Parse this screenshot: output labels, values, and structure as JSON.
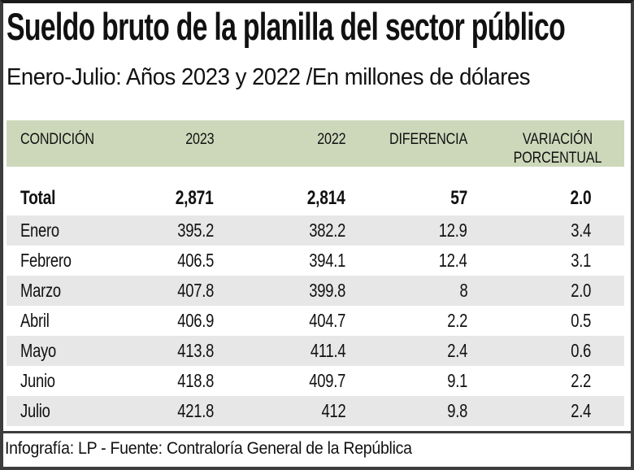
{
  "header": {
    "title": "Sueldo bruto de la planilla del sector público",
    "subtitle": "Enero-Julio: Años 2023 y 2022 /En millones de dólares"
  },
  "table": {
    "columns": [
      "CONDICIÓN",
      "2023",
      "2022",
      "DIFERENCIA",
      "VARIACIÓN\nPORCENTUAL"
    ],
    "rows": [
      {
        "label": "Total",
        "y2023": "2,871",
        "y2022": "2,814",
        "diff": "57",
        "pct": "2.0"
      },
      {
        "label": "Enero",
        "y2023": "395.2",
        "y2022": "382.2",
        "diff": "12.9",
        "pct": "3.4"
      },
      {
        "label": "Febrero",
        "y2023": "406.5",
        "y2022": "394.1",
        "diff": "12.4",
        "pct": "3.1"
      },
      {
        "label": "Marzo",
        "y2023": "407.8",
        "y2022": "399.8",
        "diff": "8",
        "pct": "2.0"
      },
      {
        "label": "Abril",
        "y2023": "406.9",
        "y2022": "404.7",
        "diff": "2.2",
        "pct": "0.5"
      },
      {
        "label": "Mayo",
        "y2023": "413.8",
        "y2022": "411.4",
        "diff": "2.4",
        "pct": "0.6"
      },
      {
        "label": "Junio",
        "y2023": "418.8",
        "y2022": "409.7",
        "diff": "9.1",
        "pct": "2.2"
      },
      {
        "label": "Julio",
        "y2023": "421.8",
        "y2022": "412",
        "diff": "9.8",
        "pct": "2.4"
      }
    ]
  },
  "footer": {
    "credit": "Infografía: LP - Fuente: Contraloría General de la República"
  },
  "colors": {
    "header_bg": "#cdd8ba",
    "row_alt_bg": "#e7e7e7",
    "frame_border": "#3d3d3d",
    "text": "#111111",
    "background": "#ffffff"
  },
  "chart_data": {
    "type": "table",
    "title": "Sueldo bruto de la planilla del sector público",
    "subtitle": "Enero-Julio: Años 2023 y 2022 /En millones de dólares",
    "units": "millones de dólares",
    "columns": [
      "CONDICIÓN",
      "2023",
      "2022",
      "DIFERENCIA",
      "VARIACIÓN PORCENTUAL"
    ],
    "categories": [
      "Total",
      "Enero",
      "Febrero",
      "Marzo",
      "Abril",
      "Mayo",
      "Junio",
      "Julio"
    ],
    "series": [
      {
        "name": "2023",
        "values": [
          2871,
          395.2,
          406.5,
          407.8,
          406.9,
          413.8,
          418.8,
          421.8
        ]
      },
      {
        "name": "2022",
        "values": [
          2814,
          382.2,
          394.1,
          399.8,
          404.7,
          411.4,
          409.7,
          412
        ]
      },
      {
        "name": "DIFERENCIA",
        "values": [
          57,
          12.9,
          12.4,
          8,
          2.2,
          2.4,
          9.1,
          9.8
        ]
      },
      {
        "name": "VARIACIÓN PORCENTUAL",
        "values": [
          2.0,
          3.4,
          3.1,
          2.0,
          0.5,
          0.6,
          2.2,
          2.4
        ]
      }
    ],
    "source": "Infografía: LP - Fuente: Contraloría General de la República"
  }
}
